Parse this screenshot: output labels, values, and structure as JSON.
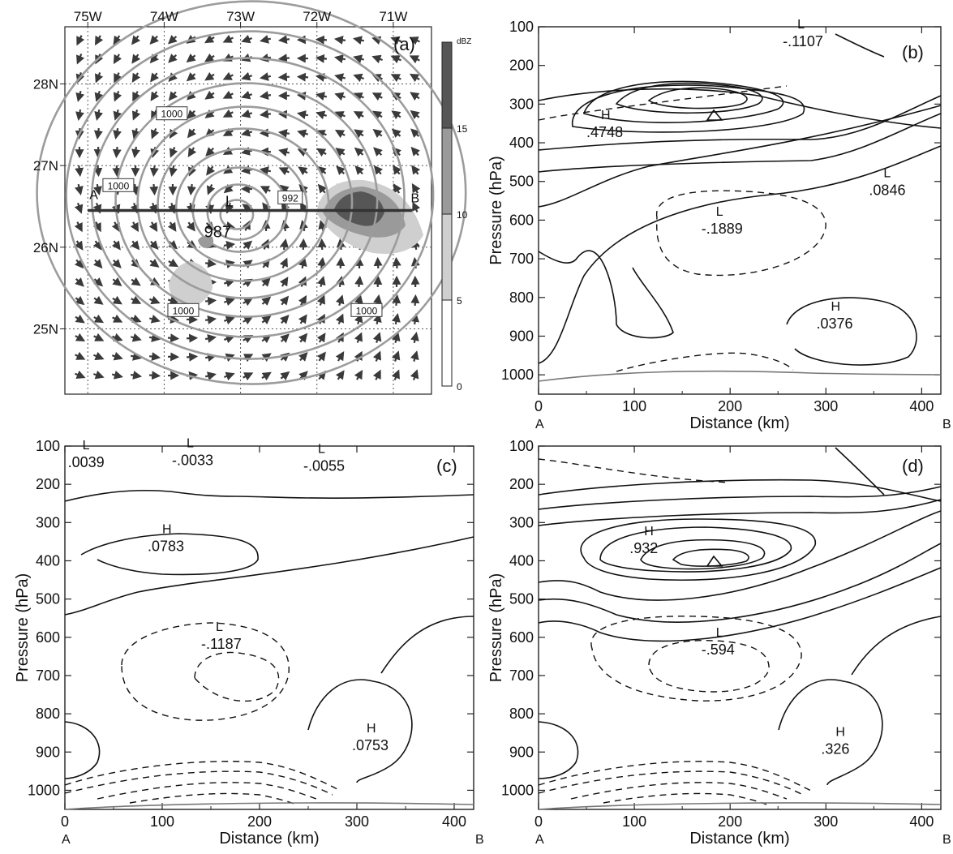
{
  "chart_data": [
    {
      "panel": "(a)",
      "type": "map",
      "lon_labels": [
        "75W",
        "74W",
        "73W",
        "72W",
        "71W"
      ],
      "lat_labels": [
        "28N",
        "27N",
        "26N",
        "25N"
      ],
      "lon_range": [
        -75.3,
        -70.5
      ],
      "lat_range": [
        24.2,
        28.7
      ],
      "grid": true,
      "isobar_labels": [
        {
          "text": "1000",
          "lon": -73.9,
          "lat": 27.63
        },
        {
          "text": "1000",
          "lon": -74.6,
          "lat": 26.75
        },
        {
          "text": "992",
          "lon": -72.35,
          "lat": 26.6
        },
        {
          "text": "987",
          "lon": -73.3,
          "lat": 26.2
        },
        {
          "text": "1000",
          "lon": -73.75,
          "lat": 25.22
        },
        {
          "text": "1000",
          "lon": -71.35,
          "lat": 25.22
        }
      ],
      "center_label": "L",
      "cross_section": {
        "start": "A",
        "end": "B",
        "lat": 26.45,
        "lon_start": -75.0,
        "lon_end": -70.75
      },
      "colorbar": {
        "unit": "dBZ",
        "ticks": [
          "0",
          "5",
          "10",
          "15"
        ],
        "colors": [
          "#ffffff",
          "#cfcfcf",
          "#9a9a9a",
          "#565656"
        ]
      },
      "colors": {
        "isobar": "#9c9c9c",
        "wind": "#3a3a3a",
        "section": "#333333"
      }
    },
    {
      "panel": "(b)",
      "type": "contour",
      "xlabel": "Distance (km)",
      "ylabel": "Pressure (hPa)",
      "xlim": [
        0,
        420
      ],
      "ylim": [
        1050,
        100
      ],
      "xticks": [
        "0",
        "100",
        "200",
        "300",
        "400"
      ],
      "yticks": [
        "100",
        "200",
        "300",
        "400",
        "500",
        "600",
        "700",
        "800",
        "900",
        "1000"
      ],
      "x_end_labels": [
        "A",
        "B"
      ],
      "extrema": [
        {
          "type": "L",
          "value": "-.1107",
          "x": 255,
          "y": 150
        },
        {
          "type": "H",
          "value": ".4748",
          "x": 50,
          "y": 385
        },
        {
          "type": "L",
          "value": ".0846",
          "x": 345,
          "y": 535
        },
        {
          "type": "L",
          "value": "-.1889",
          "x": 170,
          "y": 635
        },
        {
          "type": "H",
          "value": ".0376",
          "x": 290,
          "y": 880
        }
      ]
    },
    {
      "panel": "(c)",
      "type": "contour",
      "xlabel": "Distance (km)",
      "ylabel": "Pressure (hPa)",
      "xlim": [
        0,
        420
      ],
      "ylim": [
        1050,
        100
      ],
      "xticks": [
        "0",
        "100",
        "200",
        "300",
        "400"
      ],
      "yticks": [
        "100",
        "200",
        "300",
        "400",
        "500",
        "600",
        "700",
        "800",
        "900",
        "1000"
      ],
      "x_end_labels": [
        "A",
        "B"
      ],
      "extrema": [
        {
          "type": "L",
          "value": ".0039",
          "x": 3,
          "y": 155
        },
        {
          "type": "L",
          "value": "-.0033",
          "x": 110,
          "y": 150
        },
        {
          "type": "L",
          "value": "-.0055",
          "x": 245,
          "y": 165
        },
        {
          "type": "H",
          "value": ".0783",
          "x": 85,
          "y": 375
        },
        {
          "type": "L",
          "value": "-.1187",
          "x": 140,
          "y": 630
        },
        {
          "type": "H",
          "value": ".0753",
          "x": 295,
          "y": 895
        }
      ]
    },
    {
      "panel": "(d)",
      "type": "contour",
      "xlabel": "Distance (km)",
      "ylabel": "Pressure (hPa)",
      "xlim": [
        0,
        420
      ],
      "ylim": [
        1050,
        100
      ],
      "xticks": [
        "0",
        "100",
        "200",
        "300",
        "400"
      ],
      "yticks": [
        "100",
        "200",
        "300",
        "400",
        "500",
        "600",
        "700",
        "800",
        "900",
        "1000"
      ],
      "x_end_labels": [
        "A",
        "B"
      ],
      "extrema": [
        {
          "type": "H",
          "value": ".932",
          "x": 95,
          "y": 380
        },
        {
          "type": "L",
          "value": "-.594",
          "x": 170,
          "y": 645
        },
        {
          "type": "H",
          "value": ".326",
          "x": 295,
          "y": 905
        }
      ]
    }
  ]
}
